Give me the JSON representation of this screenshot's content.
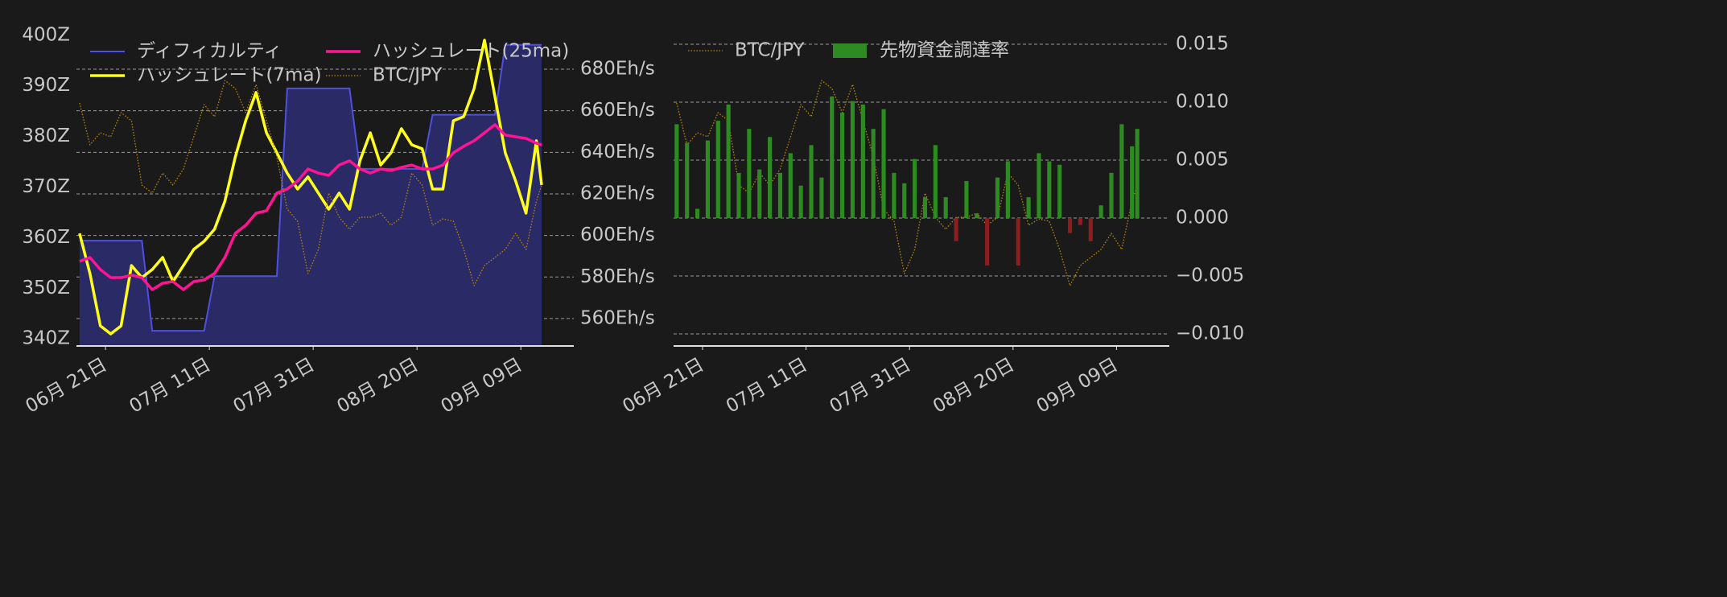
{
  "chart_data": [
    {
      "type": "line",
      "x": [
        -5,
        -3,
        -1,
        1,
        3,
        5,
        7,
        9,
        11,
        13,
        15,
        17,
        19,
        21,
        23,
        25,
        27,
        29,
        31,
        33,
        35,
        37,
        39,
        41,
        43,
        45,
        47,
        49,
        51,
        53,
        55,
        57,
        59,
        61,
        63,
        65,
        67,
        69,
        71,
        73,
        75,
        77,
        79,
        81,
        83,
        84
      ],
      "xlim": [
        -5.6,
        90.2
      ],
      "xticks": [
        {
          "value": 0,
          "label": "06月 21日"
        },
        {
          "value": 20,
          "label": "07月 11日"
        },
        {
          "value": 40,
          "label": "07月 31日"
        },
        {
          "value": 60,
          "label": "08月 20日"
        },
        {
          "value": 80,
          "label": "09月 09日"
        }
      ],
      "ylim": [
        338.6,
        402.2
      ],
      "yticks": [
        {
          "value": 340,
          "label": "340Z"
        },
        {
          "value": 350,
          "label": "350Z"
        },
        {
          "value": 360,
          "label": "360Z"
        },
        {
          "value": 370,
          "label": "370Z"
        },
        {
          "value": 380,
          "label": "380Z"
        },
        {
          "value": 390,
          "label": "390Z"
        },
        {
          "value": 400,
          "label": "400Z"
        }
      ],
      "y2lim": [
        546.8,
        701.7
      ],
      "y2ticks": [
        {
          "value": 560,
          "label": "560Eh/s"
        },
        {
          "value": 580,
          "label": "580Eh/s"
        },
        {
          "value": 600,
          "label": "600Eh/s"
        },
        {
          "value": 620,
          "label": "620Eh/s"
        },
        {
          "value": 640,
          "label": "640Eh/s"
        },
        {
          "value": 660,
          "label": "660Eh/s"
        },
        {
          "value": 680,
          "label": "680Eh/s"
        }
      ],
      "y3lim": [
        700,
        1100
      ],
      "grid": "y2",
      "series": [
        {
          "name": "ディフィカルティ",
          "type": "area",
          "color": "#5050e0",
          "fill": "#2a2a66",
          "axis": "y",
          "values": [
            359.4,
            359.4,
            359.4,
            359.4,
            359.4,
            359.4,
            359.4,
            341.6,
            341.6,
            341.6,
            341.6,
            341.6,
            341.6,
            352.4,
            352.4,
            352.4,
            352.4,
            352.4,
            352.4,
            352.4,
            389.5,
            389.5,
            389.5,
            389.5,
            389.5,
            389.5,
            389.5,
            373.6,
            373.6,
            373.6,
            373.6,
            373.6,
            373.6,
            373.6,
            384.3,
            384.3,
            384.3,
            384.3,
            384.3,
            384.3,
            384.3,
            398.1,
            398.1,
            398.1,
            398.1,
            398.1
          ]
        },
        {
          "name": "ハッシュレート(7ma)",
          "color": "#ffff1a",
          "axis": "y2",
          "values": [
            601,
            581.7,
            556.5,
            552.6,
            556.5,
            585.5,
            579.7,
            583.6,
            589.4,
            577.8,
            585.5,
            593.3,
            597.2,
            603,
            616.5,
            637.8,
            655.2,
            668.8,
            649.4,
            639.8,
            630,
            622.3,
            628.2,
            620.4,
            612.6,
            620.4,
            612.6,
            635.9,
            649.4,
            633.9,
            639.8,
            651.4,
            643.6,
            641.7,
            622.3,
            622.3,
            655.2,
            657.2,
            670.7,
            694,
            666.9,
            639.8,
            626.2,
            610.7,
            645.6,
            624.3
          ]
        },
        {
          "name": "ハッシュレート(25ma)",
          "color": "#ff1493",
          "axis": "y2",
          "values": [
            587.5,
            589.4,
            583.6,
            579.7,
            579.7,
            580.9,
            579.7,
            573.9,
            577,
            577.8,
            573.9,
            577.8,
            578.6,
            581.7,
            589.4,
            601,
            604.9,
            610.7,
            611.9,
            620.4,
            622.3,
            626.2,
            632,
            630,
            628.9,
            633.9,
            635.9,
            632,
            630,
            632,
            631.2,
            632.8,
            633.9,
            632,
            632,
            633.9,
            639.8,
            642.9,
            645.6,
            649.4,
            653.3,
            648.3,
            647.5,
            646.7,
            644.4,
            643.6
          ]
        },
        {
          "name": "BTC/JPY",
          "color": "#b8860b",
          "dotted": true,
          "axis": "y3",
          "values": [
            1002,
            950,
            965,
            960,
            990,
            980,
            900,
            890,
            915,
            900,
            920,
            960,
            1000,
            985,
            1030,
            1020,
            990,
            1025,
            980,
            935,
            870,
            855,
            790,
            820,
            890,
            860,
            845,
            860,
            860,
            865,
            850,
            860,
            915,
            900,
            850,
            858,
            855,
            820,
            775,
            800,
            810,
            820,
            840,
            820,
            880,
            900
          ]
        }
      ]
    },
    {
      "type": "bar",
      "x": [
        -5,
        -3,
        -1,
        1,
        3,
        5,
        7,
        9,
        11,
        13,
        15,
        17,
        19,
        21,
        23,
        25,
        27,
        29,
        31,
        33,
        35,
        37,
        39,
        41,
        43,
        45,
        47,
        49,
        51,
        53,
        55,
        57,
        59,
        61,
        63,
        65,
        67,
        69,
        71,
        73,
        75,
        77,
        79,
        81,
        83,
        84
      ],
      "xlim": [
        -5.6,
        90.2
      ],
      "xticks": [
        {
          "value": 0,
          "label": "06月 21日"
        },
        {
          "value": 20,
          "label": "07月 11日"
        },
        {
          "value": 40,
          "label": "07月 31日"
        },
        {
          "value": 60,
          "label": "08月 20日"
        },
        {
          "value": 80,
          "label": "09月 09日"
        }
      ],
      "ylim": [
        -0.01104,
        0.01674
      ],
      "yticks": [
        {
          "value": -0.01,
          "label": "−0.010"
        },
        {
          "value": -0.005,
          "label": "−0.005"
        },
        {
          "value": 0,
          "label": "0.000"
        },
        {
          "value": 0.005,
          "label": "0.005"
        },
        {
          "value": 0.01,
          "label": "0.010"
        },
        {
          "value": 0.015,
          "label": "0.015"
        }
      ],
      "y3lim": [
        700,
        1100
      ],
      "grid": "y",
      "series": [
        {
          "name": "BTC/JPY",
          "type": "line",
          "color": "#b8860b",
          "dotted": true,
          "axis": "y3",
          "values": [
            1002,
            950,
            965,
            960,
            990,
            980,
            900,
            890,
            915,
            900,
            920,
            960,
            1000,
            985,
            1030,
            1020,
            990,
            1025,
            980,
            935,
            870,
            855,
            790,
            820,
            890,
            860,
            845,
            860,
            860,
            865,
            850,
            860,
            915,
            900,
            850,
            858,
            855,
            820,
            775,
            800,
            810,
            820,
            840,
            820,
            880,
            900
          ]
        },
        {
          "name": "先物資金調達率",
          "color": "#2e8b22",
          "negative_color": "#8b1e1e",
          "axis": "y",
          "values": [
            0.0081,
            0.0065,
            0.0008,
            0.0067,
            0.0084,
            0.0098,
            0.0039,
            0.0077,
            0.0042,
            0.007,
            0.0039,
            0.0056,
            0.0028,
            0.0063,
            0.0035,
            0.0105,
            0.0091,
            0.0101,
            0.0098,
            0.0077,
            0.0094,
            0.0039,
            0.003,
            0.0051,
            0.0018,
            0.0063,
            0.0018,
            -0.002,
            0.0032,
            0.0004,
            -0.0041,
            0.0035,
            0.0049,
            -0.0041,
            0.0018,
            0.0056,
            0.0049,
            0.0046,
            -0.0013,
            -0.0006,
            -0.002,
            0.0011,
            0.0039,
            0.0081,
            0.0062,
            0.0077
          ]
        }
      ]
    }
  ]
}
